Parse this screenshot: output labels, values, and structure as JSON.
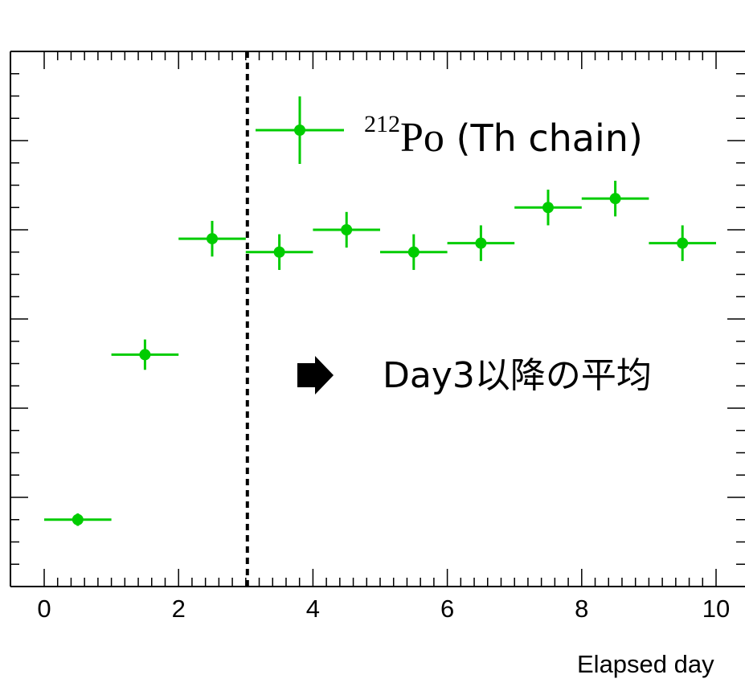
{
  "chart_data": {
    "type": "scatter",
    "xlabel": "Elapsed day",
    "xlim": [
      0,
      10
    ],
    "x_ticks": [
      "0",
      "2",
      "4",
      "6",
      "8",
      "10"
    ],
    "grid": false,
    "series": [
      {
        "color": "#00cc00",
        "marker": "circle",
        "points": [
          {
            "x": 0.5,
            "xerr": 0.5,
            "y": 0.75,
            "yerr": 0.07
          },
          {
            "x": 1.5,
            "xerr": 0.5,
            "y": 2.6,
            "yerr": 0.17
          },
          {
            "x": 2.5,
            "xerr": 0.5,
            "y": 3.9,
            "yerr": 0.2
          },
          {
            "x": 3.5,
            "xerr": 0.5,
            "y": 3.75,
            "yerr": 0.2
          },
          {
            "x": 4.5,
            "xerr": 0.5,
            "y": 4.0,
            "yerr": 0.2
          },
          {
            "x": 5.5,
            "xerr": 0.5,
            "y": 3.75,
            "yerr": 0.2
          },
          {
            "x": 6.5,
            "xerr": 0.5,
            "y": 3.85,
            "yerr": 0.2
          },
          {
            "x": 7.5,
            "xerr": 0.5,
            "y": 4.25,
            "yerr": 0.2
          },
          {
            "x": 8.5,
            "xerr": 0.5,
            "y": 4.35,
            "yerr": 0.2
          },
          {
            "x": 9.5,
            "xerr": 0.5,
            "y": 3.85,
            "yerr": 0.2
          }
        ]
      }
    ],
    "vline": {
      "x": 3.0,
      "style": "dashed",
      "color": "#000000"
    },
    "legend": {
      "position": "top-right",
      "isotope_mass": "212",
      "element": "Po",
      "rest": " (Th chain)"
    },
    "annotation": {
      "arrow_icon": "right-arrow-icon",
      "text": "Day3以降の平均"
    }
  }
}
